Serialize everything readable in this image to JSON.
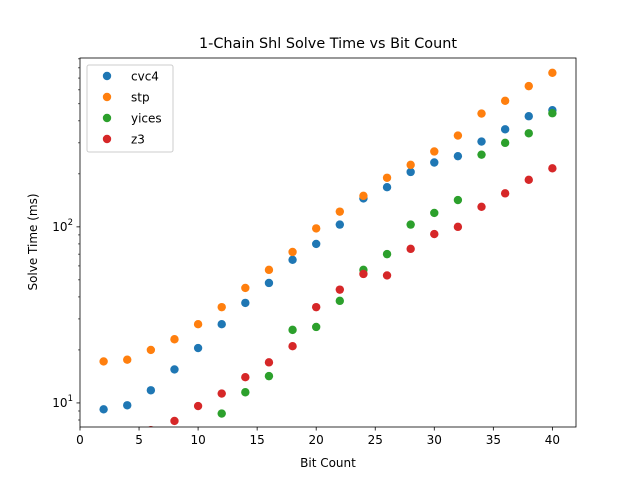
{
  "chart_data": {
    "type": "scatter",
    "title": "1-Chain Shl Solve Time vs Bit Count",
    "xlabel": "Bit Count",
    "ylabel": "Solve Time (ms)",
    "xlim": [
      0,
      42
    ],
    "ylim": [
      7.3,
      910
    ],
    "yscale": "log",
    "xticks": [
      0,
      5,
      10,
      15,
      20,
      25,
      30,
      35,
      40
    ],
    "yticks": [
      {
        "value": 10,
        "base": "10",
        "exp": "1"
      },
      {
        "value": 100,
        "base": "10",
        "exp": "2"
      }
    ],
    "grid": false,
    "legend": "top-left",
    "series": [
      {
        "name": "cvc4",
        "color": "#1f77b4",
        "x": [
          2,
          4,
          6,
          8,
          10,
          12,
          14,
          16,
          18,
          20,
          22,
          24,
          26,
          28,
          30,
          32,
          34,
          36,
          38,
          40
        ],
        "y": [
          9.2,
          9.7,
          11.8,
          15.5,
          20.5,
          28,
          37,
          48,
          65,
          80,
          103,
          145,
          168,
          205,
          232,
          252,
          305,
          358,
          425,
          460
        ]
      },
      {
        "name": "stp",
        "color": "#ff7f0e",
        "x": [
          2,
          4,
          6,
          8,
          10,
          12,
          14,
          16,
          18,
          20,
          22,
          24,
          26,
          28,
          30,
          32,
          34,
          36,
          38,
          40
        ],
        "y": [
          17.2,
          17.6,
          20,
          23,
          28,
          35,
          45,
          57,
          72,
          98,
          122,
          150,
          190,
          225,
          268,
          330,
          440,
          520,
          630,
          750
        ]
      },
      {
        "name": "yices",
        "color": "#2ca02c",
        "x": [
          12,
          14,
          16,
          18,
          20,
          22,
          24,
          26,
          28,
          30,
          32,
          34,
          36,
          38,
          40
        ],
        "y": [
          8.7,
          11.5,
          14.2,
          26,
          27,
          38,
          57,
          70,
          103,
          120,
          142,
          257,
          300,
          340,
          442
        ]
      },
      {
        "name": "z3",
        "color": "#d62728",
        "x": [
          6,
          8,
          10,
          12,
          14,
          16,
          18,
          20,
          22,
          24,
          26,
          28,
          30,
          32,
          34,
          36,
          38,
          40
        ],
        "y": [
          7.0,
          7.9,
          9.6,
          11.3,
          14,
          17,
          21,
          35,
          44,
          54,
          53,
          75,
          91,
          100,
          130,
          155,
          185,
          215
        ]
      }
    ]
  }
}
